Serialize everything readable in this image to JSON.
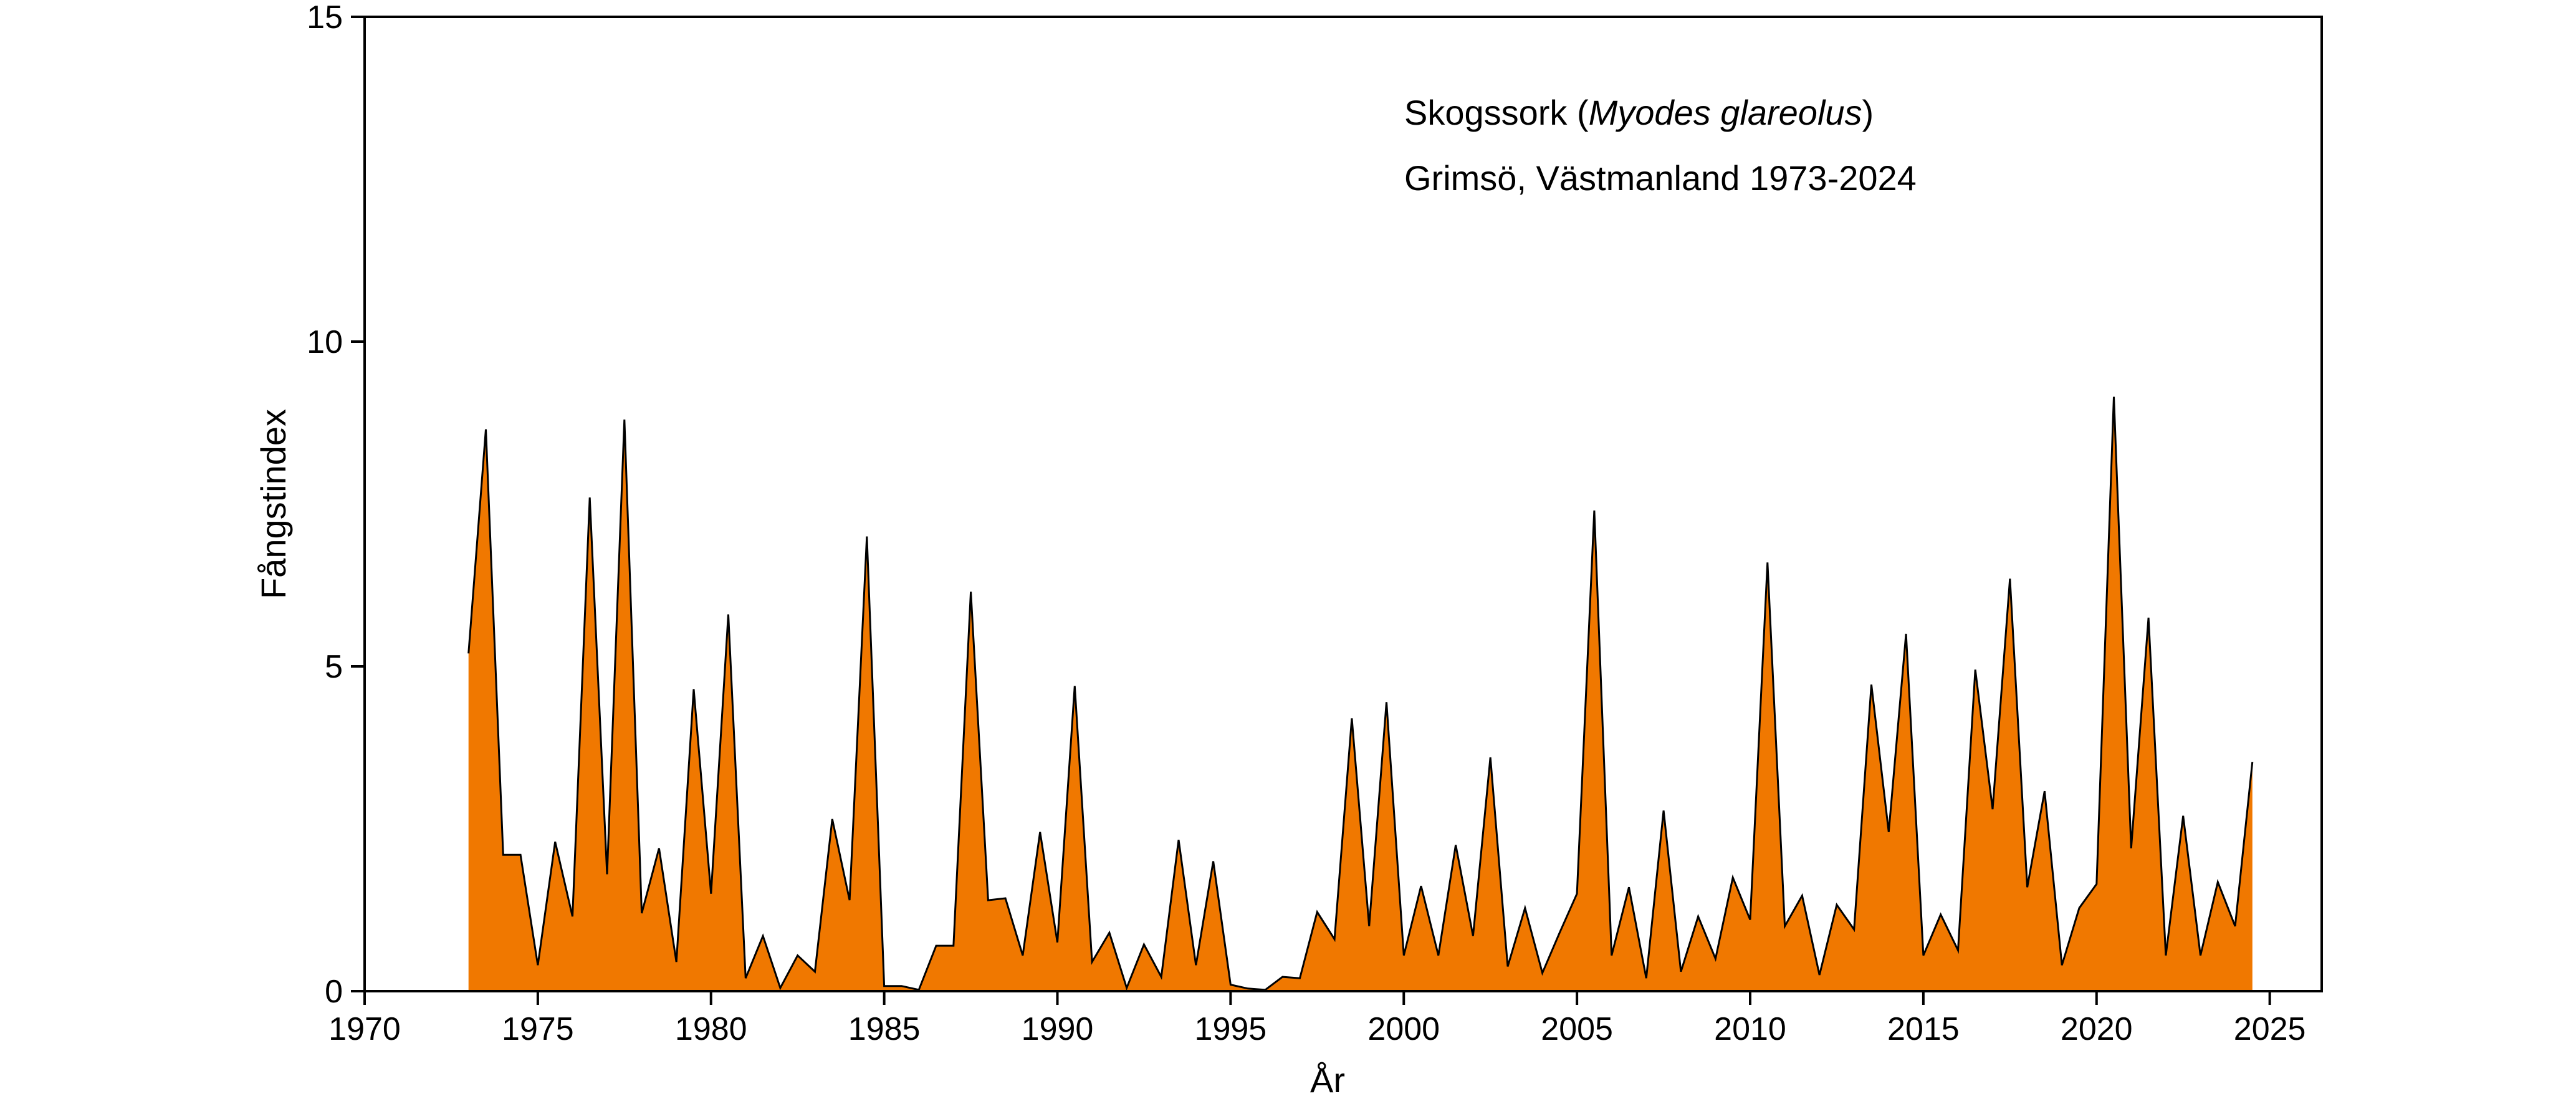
{
  "chart_data": {
    "type": "area",
    "title": "",
    "xlabel": "År",
    "ylabel": "Fångstindex",
    "xlim": [
      1970,
      2026.5
    ],
    "ylim": [
      0,
      15
    ],
    "xticks": [
      1970,
      1975,
      1980,
      1985,
      1990,
      1995,
      2000,
      2005,
      2010,
      2015,
      2020,
      2025
    ],
    "yticks": [
      0,
      5,
      10,
      15
    ],
    "grid": false,
    "fill_color": "#f07800",
    "line_color": "#000000",
    "annotations": {
      "species_prefix": "Skogssork (",
      "species_latin": "Myodes glareolus",
      "species_suffix": ")",
      "location": "Grimsö, Västmanland 1973-2024"
    },
    "series": [
      {
        "x": [
          1973.0,
          1973.5,
          1974.0,
          1974.5,
          1975.0,
          1975.5,
          1976.0,
          1976.5,
          1977.0,
          1977.5,
          1978.0,
          1978.5,
          1979.0,
          1979.5,
          1980.0,
          1980.5,
          1981.0,
          1981.5,
          1982.0,
          1982.5,
          1983.0,
          1983.5,
          1984.0,
          1984.5,
          1985.0,
          1985.5,
          1986.0,
          1986.5,
          1987.0,
          1987.5,
          1988.0,
          1988.5,
          1989.0,
          1989.5,
          1990.0,
          1990.5,
          1991.0,
          1991.5,
          1992.0,
          1992.5,
          1993.0,
          1993.5,
          1994.0,
          1994.5,
          1995.0,
          1995.5,
          1996.0,
          1996.5,
          1997.0,
          1997.5,
          1998.0,
          1998.5,
          1999.0,
          1999.5,
          2000.0,
          2000.5,
          2001.0,
          2001.5,
          2002.0,
          2002.5,
          2003.0,
          2003.5,
          2004.0,
          2004.5,
          2005.0,
          2005.5,
          2006.0,
          2006.5,
          2007.0,
          2007.5,
          2008.0,
          2008.5,
          2009.0,
          2009.5,
          2010.0,
          2010.5,
          2011.0,
          2011.5,
          2012.0,
          2012.5,
          2013.0,
          2013.5,
          2014.0,
          2014.5,
          2015.0,
          2015.5,
          2016.0,
          2016.5,
          2017.0,
          2017.5,
          2018.0,
          2018.5,
          2019.0,
          2019.5,
          2020.0,
          2020.5,
          2021.0,
          2021.5,
          2022.0,
          2022.5,
          2023.0,
          2023.5,
          2024.0,
          2024.5
        ],
        "values": [
          5.2,
          8.65,
          2.1,
          2.1,
          0.4,
          2.3,
          1.15,
          7.6,
          1.8,
          8.8,
          1.2,
          2.2,
          0.45,
          4.65,
          1.5,
          5.8,
          0.2,
          0.85,
          0.05,
          0.55,
          0.3,
          2.65,
          1.4,
          7.0,
          0.08,
          0.08,
          0.02,
          0.7,
          0.7,
          6.15,
          1.4,
          1.43,
          0.55,
          2.45,
          0.75,
          4.7,
          0.45,
          0.9,
          0.05,
          0.72,
          0.22,
          2.33,
          0.4,
          2.0,
          0.1,
          0.04,
          0.02,
          0.22,
          0.2,
          1.22,
          0.8,
          4.2,
          1.0,
          4.45,
          0.55,
          1.62,
          0.55,
          2.25,
          0.85,
          3.6,
          0.38,
          1.28,
          0.28,
          0.9,
          1.5,
          7.4,
          0.55,
          1.6,
          0.2,
          2.78,
          0.3,
          1.15,
          0.5,
          1.75,
          1.1,
          6.6,
          1.0,
          1.47,
          0.25,
          1.33,
          0.95,
          4.72,
          2.45,
          5.5,
          0.55,
          1.18,
          0.63,
          4.95,
          2.8,
          6.35,
          1.6,
          3.08,
          0.4,
          1.28,
          1.65,
          9.15,
          2.2,
          5.75,
          0.55,
          2.7,
          0.55,
          1.68,
          1.0,
          3.53
        ]
      }
    ]
  }
}
